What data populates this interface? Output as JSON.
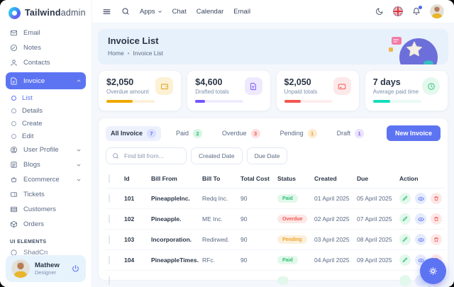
{
  "brand": {
    "bold": "Tailwind",
    "light": "admin"
  },
  "topbar": {
    "menu": [
      {
        "label": "Apps"
      },
      {
        "label": "Chat"
      },
      {
        "label": "Calendar"
      },
      {
        "label": "Email"
      }
    ]
  },
  "sidebar": {
    "items_top": [
      {
        "label": "Email"
      },
      {
        "label": "Notes"
      },
      {
        "label": "Contacts"
      }
    ],
    "invoice_group": {
      "label": "Invoice",
      "children": [
        {
          "label": "List",
          "active": true
        },
        {
          "label": "Details"
        },
        {
          "label": "Create"
        },
        {
          "label": "Edit"
        }
      ]
    },
    "groups": [
      {
        "label": "User Profile"
      },
      {
        "label": "Blogs"
      },
      {
        "label": "Ecommerce"
      }
    ],
    "items_bottom": [
      {
        "label": "Tickets"
      },
      {
        "label": "Customers"
      },
      {
        "label": "Orders"
      }
    ],
    "section_title": "UI ELEMENTS",
    "partial_item": {
      "label": "ShadCn"
    },
    "user": {
      "name": "Mathew",
      "role": "Designer"
    }
  },
  "banner": {
    "title": "Invoice List",
    "breadcrumb_home": "Home",
    "separator": "•",
    "breadcrumb_current": "Invoice List"
  },
  "stats": [
    {
      "value": "$2,050",
      "label": "Overdue amount",
      "accent": "#EFA800",
      "progress": 55,
      "icon": "wallet-icon"
    },
    {
      "value": "$4,600",
      "label": "Drafted totals",
      "accent": "#7352FF",
      "progress": 20,
      "icon": "file-icon"
    },
    {
      "value": "$2,050",
      "label": "Unpaid totals",
      "accent": "#F4564E",
      "progress": 35,
      "icon": "credit-card-icon"
    },
    {
      "value": "7 days",
      "label": "Average paid time",
      "accent": "#13DEB9",
      "progress": 35,
      "icon": "clock-icon"
    }
  ],
  "invoice_tabs": [
    {
      "label": "All Invoice",
      "count": "7",
      "active": true
    },
    {
      "label": "Paid",
      "count": "2"
    },
    {
      "label": "Overdue",
      "count": "3"
    },
    {
      "label": "Pending",
      "count": "1"
    },
    {
      "label": "Draft",
      "count": "1"
    }
  ],
  "toolbar": {
    "new_invoice_label": "New Invoice",
    "search_placeholder": "Find bill from...",
    "created_date_label": "Created Date",
    "due_date_label": "Due Date"
  },
  "table": {
    "headers": {
      "id": "Id",
      "bill_from": "Bill From",
      "bill_to": "Bill To",
      "total_cost": "Total Cost",
      "status": "Status",
      "created": "Created",
      "due": "Due",
      "action": "Action"
    },
    "rows": [
      {
        "id": "101",
        "bill_from": "PineappleInc.",
        "bill_to": "Redq Inc.",
        "total_cost": "90",
        "status": "Paid",
        "created": "01 April 2025",
        "due": "05 April 2025"
      },
      {
        "id": "102",
        "bill_from": "Pineapple.",
        "bill_to": "ME Inc.",
        "total_cost": "90",
        "status": "Overdue",
        "created": "02 April 2025",
        "due": "07 April 2025"
      },
      {
        "id": "103",
        "bill_from": "Incorporation.",
        "bill_to": "Redirwed.",
        "total_cost": "90",
        "status": "Pending",
        "created": "03 April 2025",
        "due": "08 April 2025"
      },
      {
        "id": "104",
        "bill_from": "PineappleTimes.",
        "bill_to": "RFc.",
        "total_cost": "90",
        "status": "Paid",
        "created": "04 April 2025",
        "due": "09 April 2025"
      }
    ]
  },
  "colors": {
    "primary": "#5D74F2",
    "success": "#2FBF71",
    "danger": "#F4564E",
    "warning": "#F0A32A",
    "purple": "#7352FF",
    "teal": "#13DEB9",
    "banner_bg": "#E7F1FB",
    "body_bg": "#F4F7FB"
  }
}
